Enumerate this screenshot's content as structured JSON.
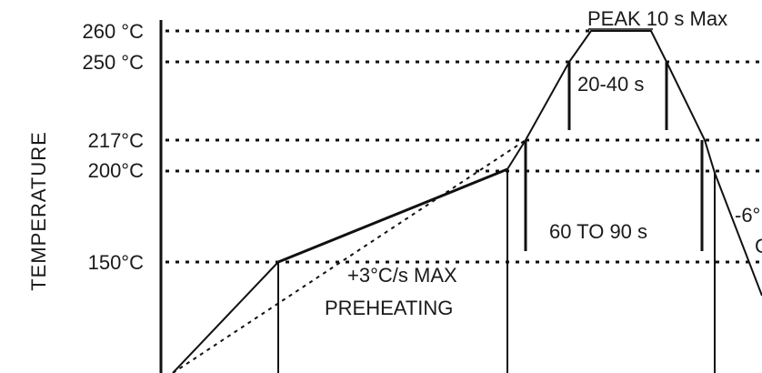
{
  "chart_data": {
    "type": "line",
    "title": "",
    "xlabel": "",
    "ylabel": "TEMPERATURE",
    "grid": false,
    "y_ticks": [
      {
        "value": 260,
        "label": "260 °C"
      },
      {
        "value": 250,
        "label": "250 °C"
      },
      {
        "value": 217,
        "label": "217°C"
      },
      {
        "value": 200,
        "label": "200°C"
      },
      {
        "value": 150,
        "label": "150°C"
      }
    ],
    "series": [
      {
        "points": [
          {
            "t": 0,
            "temp": 100
          },
          {
            "t": 40,
            "temp": 150
          },
          {
            "t": 115,
            "temp": 200
          },
          {
            "t": 118,
            "temp": 217
          },
          {
            "t": 132,
            "temp": 250
          },
          {
            "t": 136,
            "temp": 260
          },
          {
            "t": 145,
            "temp": 260
          },
          {
            "t": 149,
            "temp": 250
          },
          {
            "t": 158,
            "temp": 217
          },
          {
            "t": 162,
            "temp": 200
          },
          {
            "t": 172,
            "temp": 160
          }
        ]
      },
      {
        "style": "dotted",
        "points": [
          {
            "t": 0,
            "temp": 100
          },
          {
            "t": 118,
            "temp": 217
          }
        ]
      }
    ],
    "annotations": [
      {
        "text": "PEAK 10 s Max"
      },
      {
        "text": "20-40 s"
      },
      {
        "text": "60 TO 90 s"
      },
      {
        "text": "+3°C/s MAX"
      },
      {
        "text": "PREHEATING"
      },
      {
        "text": "-6°"
      },
      {
        "text": "C"
      }
    ]
  }
}
